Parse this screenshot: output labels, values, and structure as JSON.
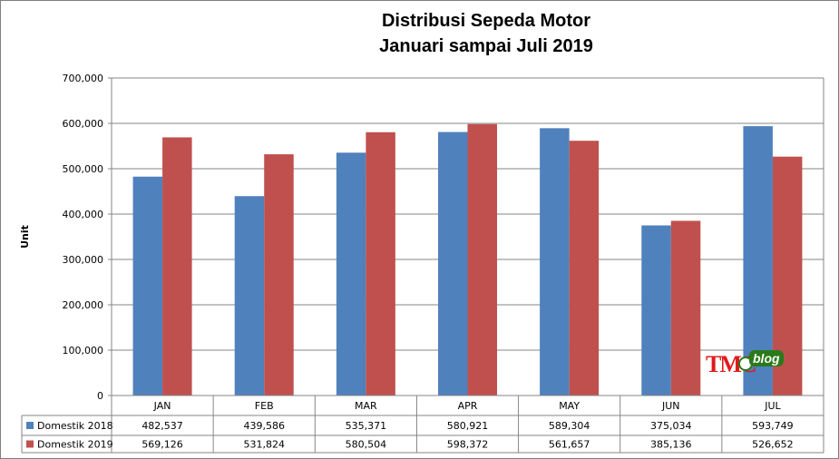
{
  "chart_data": {
    "type": "bar",
    "title": [
      "Distribusi Sepeda Motor",
      "Januari sampai Juli 2019"
    ],
    "ylabel": "Unit",
    "xlabel": "",
    "ylim": [
      0,
      700000
    ],
    "yticks": [
      0,
      100000,
      200000,
      300000,
      400000,
      500000,
      600000,
      700000
    ],
    "ytick_labels": [
      "0",
      "100,000",
      "200,000",
      "300,000",
      "400,000",
      "500,000",
      "600,000",
      "700,000"
    ],
    "grid": true,
    "categories": [
      "JAN",
      "FEB",
      "MAR",
      "APR",
      "MAY",
      "JUN",
      "JUL"
    ],
    "series": [
      {
        "name": "Domestik 2018",
        "color": "#4f81bd",
        "values": [
          482537,
          439586,
          535371,
          580921,
          589304,
          375034,
          593749
        ],
        "labels": [
          "482,537",
          "439,586",
          "535,371",
          "580,921",
          "589,304",
          "375,034",
          "593,749"
        ]
      },
      {
        "name": "Domestik 2019",
        "color": "#c0504d",
        "values": [
          569126,
          531824,
          580504,
          598372,
          561657,
          385136,
          526652
        ],
        "labels": [
          "569,126",
          "531,824",
          "580,504",
          "598,372",
          "561,657",
          "385,136",
          "526,652"
        ]
      }
    ],
    "data_table": true
  },
  "watermark": {
    "logo_text": "TMC",
    "badge_text": "blog"
  }
}
